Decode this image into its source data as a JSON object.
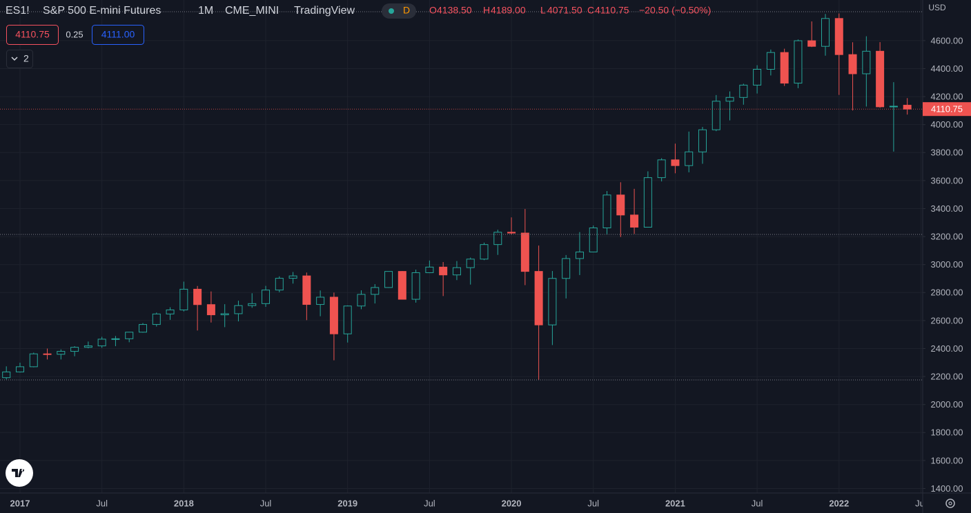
{
  "legend": {
    "symbol": "ES1!",
    "name": "S&P 500 E-mini Futures",
    "interval": "1M",
    "exchange": "CME_MINI",
    "source": "TradingView",
    "session": "D",
    "ohlc": [
      {
        "key": "O",
        "text": "4138.50"
      },
      {
        "key": "H",
        "text": "4189.00"
      },
      {
        "key": "L",
        "text": "4071.50"
      },
      {
        "key": "C",
        "text": "4110.75"
      }
    ],
    "change": "−20.50 (−0.50%)"
  },
  "order_panel": {
    "sell": "4110.75",
    "spread": "0.25",
    "buy": "4111.00"
  },
  "indicators_toggle": "2",
  "chart_data": {
    "type": "candlestick",
    "y_axis_unit": "USD",
    "last_price_label": "4110.75",
    "up_color": "#26a69a",
    "down_color": "#ef5350",
    "grid": true,
    "categories": [
      null,
      "2017",
      null,
      null,
      null,
      null,
      null,
      "Jul",
      null,
      null,
      null,
      null,
      null,
      "2018",
      null,
      null,
      null,
      null,
      null,
      "Jul",
      null,
      null,
      null,
      null,
      null,
      "2019",
      null,
      null,
      null,
      null,
      null,
      "Jul",
      null,
      null,
      null,
      null,
      null,
      "2020",
      null,
      null,
      null,
      null,
      null,
      "Jul",
      null,
      null,
      null,
      null,
      null,
      "2021",
      null,
      null,
      null,
      null,
      null,
      "Jul",
      null,
      null,
      null,
      null,
      null,
      "2022",
      null,
      null,
      null,
      null,
      null,
      "Jul"
    ],
    "open": [
      2192,
      2233,
      2270,
      2362,
      2359,
      2380,
      2409,
      2419,
      2467,
      2470,
      2517,
      2572,
      2647,
      2676,
      2824,
      2714,
      2641,
      2649,
      2707,
      2721,
      2818,
      2902,
      2919,
      2715,
      2767,
      2505,
      2704,
      2787,
      2836,
      2951,
      2752,
      2942,
      2982,
      2926,
      2978,
      3039,
      3143,
      3231,
      3225,
      2951,
      2569,
      2901,
      3043,
      3090,
      3262,
      3497,
      3354,
      3267,
      3621,
      3748,
      3707,
      3805,
      3963,
      4167,
      4194,
      4282,
      4395,
      4515,
      4296,
      4599,
      4559,
      4758,
      4500,
      4363,
      4524,
      4127,
      4138.5,
      null
    ],
    "high": [
      2273,
      2299,
      2371,
      2400,
      2394,
      2417,
      2450,
      2484,
      2490,
      2519,
      2582,
      2657,
      2695,
      2878,
      2847,
      2808,
      2717,
      2742,
      2795,
      2848,
      2916,
      2947,
      2943,
      2815,
      2800,
      2708,
      2816,
      2860,
      2950,
      2954,
      2964,
      3029,
      3018,
      3025,
      3050,
      3157,
      3249,
      3337,
      3397,
      3136,
      2954,
      3068,
      3232,
      3279,
      3525,
      3588,
      3541,
      3666,
      3760,
      3864,
      3950,
      3983,
      4211,
      4237,
      4292,
      4424,
      4536,
      4542,
      4608,
      4737,
      4790,
      4794,
      4588,
      4631,
      4589,
      4303,
      4189,
      null
    ],
    "low": [
      2180,
      2229,
      2266,
      2322,
      2322,
      2345,
      2402,
      2405,
      2417,
      2445,
      2513,
      2557,
      2605,
      2665,
      2529,
      2586,
      2553,
      2594,
      2691,
      2698,
      2802,
      2864,
      2603,
      2631,
      2316,
      2443,
      2681,
      2722,
      2833,
      2766,
      2728,
      2939,
      2775,
      2889,
      2857,
      3032,
      3069,
      3214,
      2853,
      2174,
      2425,
      2758,
      2925,
      3088,
      3212,
      3197,
      3219,
      3267,
      3594,
      3652,
      3659,
      3720,
      3953,
      4030,
      4142,
      4222,
      4351,
      4276,
      4260,
      4554,
      4492,
      4212,
      4101,
      4129,
      4120,
      3807,
      4071.5,
      null
    ],
    "close": [
      2233,
      2270,
      2362,
      2359,
      2380,
      2409,
      2419,
      2467,
      2470,
      2517,
      2572,
      2647,
      2676,
      2824,
      2714,
      2641,
      2649,
      2707,
      2721,
      2818,
      2902,
      2919,
      2715,
      2767,
      2505,
      2704,
      2787,
      2836,
      2951,
      2752,
      2942,
      2982,
      2926,
      2978,
      3039,
      3143,
      3231,
      3225,
      2951,
      2569,
      2901,
      3043,
      3090,
      3262,
      3497,
      3354,
      3267,
      3621,
      3748,
      3707,
      3805,
      3963,
      4167,
      4194,
      4282,
      4395,
      4515,
      4296,
      4599,
      4559,
      4758,
      4500,
      4363,
      4524,
      4127,
      4131.25,
      4110.75,
      null
    ],
    "ylim": [
      1368,
      4890
    ],
    "yticks": [
      {
        "value": 1400,
        "label": "1400.00"
      },
      {
        "value": 1600,
        "label": "1600.00"
      },
      {
        "value": 1800,
        "label": "1800.00"
      },
      {
        "value": 2000,
        "label": "2000.00"
      },
      {
        "value": 2200,
        "label": "2200.00"
      },
      {
        "value": 2400,
        "label": "2400.00"
      },
      {
        "value": 2600,
        "label": "2600.00"
      },
      {
        "value": 2800,
        "label": "2800.00"
      },
      {
        "value": 3000,
        "label": "3000.00"
      },
      {
        "value": 3200,
        "label": "3200.00"
      },
      {
        "value": 3400,
        "label": "3400.00"
      },
      {
        "value": 3600,
        "label": "3600.00"
      },
      {
        "value": 3800,
        "label": "3800.00"
      },
      {
        "value": 4000,
        "label": "4000.00"
      },
      {
        "value": 4200,
        "label": "4200.00"
      },
      {
        "value": 4400,
        "label": "4400.00"
      },
      {
        "value": 4600,
        "label": "4600.00"
      }
    ]
  }
}
